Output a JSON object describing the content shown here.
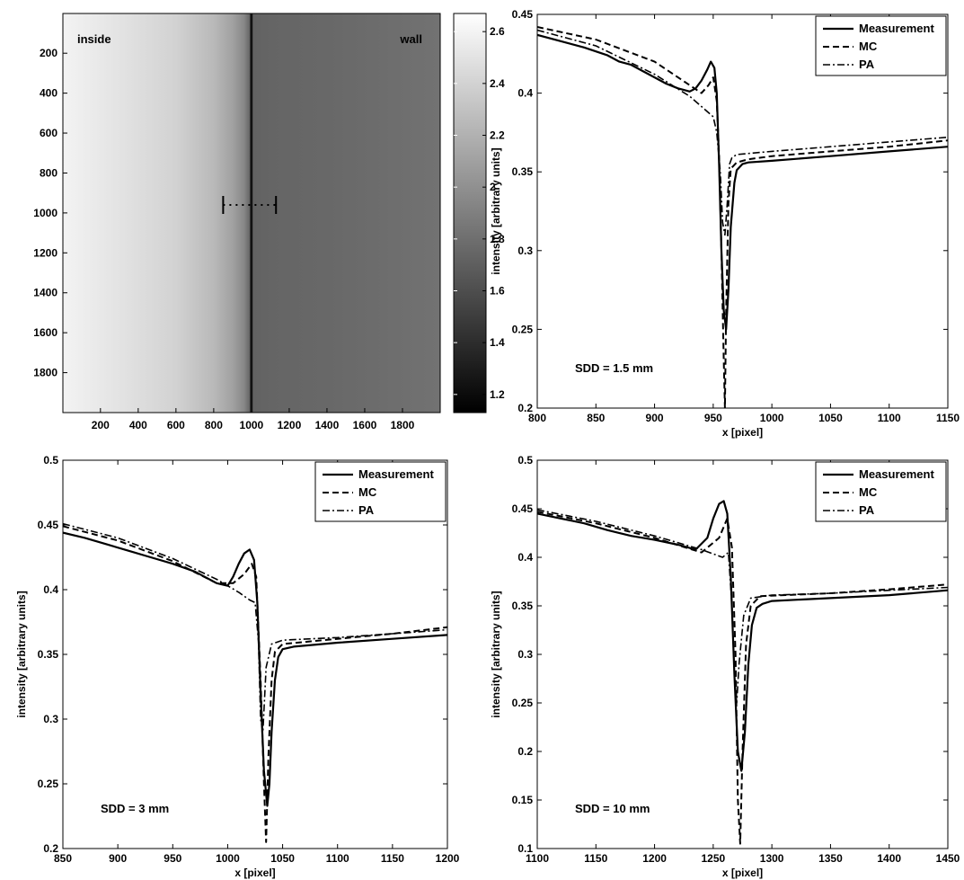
{
  "chart_data": [
    {
      "type": "heatmap",
      "annotations": [
        "inside",
        "wall"
      ],
      "x_ticks": [
        "200",
        "400",
        "600",
        "800",
        "1000",
        "1200",
        "1400",
        "1600",
        "1800"
      ],
      "y_ticks": [
        "200",
        "400",
        "600",
        "800",
        "1000",
        "1200",
        "1400",
        "1600",
        "1800"
      ],
      "xlim": [
        1,
        2000
      ],
      "ylim": [
        1,
        2000
      ],
      "colorbar": {
        "range": [
          1.13,
          2.67
        ],
        "ticks": [
          "1.2",
          "1.4",
          "1.6",
          "1.8",
          "2",
          "2.2",
          "2.4",
          "2.6"
        ]
      },
      "profile_line": {
        "x": [
          850,
          1130
        ],
        "y": 960
      },
      "edge_x": 1000,
      "values_description_free": false,
      "intensity_profile_x": [
        0,
        300,
        600,
        800,
        900,
        960,
        990,
        998,
        1003,
        1010,
        1100,
        1400,
        1700,
        2000
      ],
      "intensity_profile_v": [
        2.6,
        2.5,
        2.4,
        2.25,
        2.1,
        1.95,
        1.75,
        1.2,
        1.6,
        1.72,
        1.74,
        1.76,
        1.79,
        1.82
      ]
    },
    {
      "type": "line",
      "xlabel": "x [pixel]",
      "ylabel": "intensity [arbitrary units]",
      "xlim": [
        800,
        1150
      ],
      "ylim": [
        0.2,
        0.45
      ],
      "x_ticks": [
        "800",
        "850",
        "900",
        "950",
        "1000",
        "1050",
        "1100",
        "1150"
      ],
      "y_ticks": [
        "0.2",
        "0.25",
        "0.3",
        "0.35",
        "0.4",
        "0.45"
      ],
      "annotation": "SDD = 1.5 mm",
      "legend": [
        "Measurement",
        "MC",
        "PA"
      ],
      "legend_position": "top-right",
      "series": [
        {
          "name": "Measurement",
          "style": "solid",
          "x": [
            800,
            820,
            840,
            860,
            870,
            880,
            890,
            900,
            910,
            920,
            930,
            935,
            940,
            945,
            948,
            951,
            953,
            955,
            957,
            959,
            961,
            963,
            965,
            968,
            970,
            975,
            980,
            1000,
            1050,
            1100,
            1150
          ],
          "y": [
            0.437,
            0.433,
            0.429,
            0.424,
            0.42,
            0.418,
            0.414,
            0.41,
            0.406,
            0.403,
            0.401,
            0.403,
            0.408,
            0.415,
            0.42,
            0.416,
            0.4,
            0.355,
            0.3,
            0.262,
            0.25,
            0.275,
            0.315,
            0.343,
            0.351,
            0.355,
            0.356,
            0.357,
            0.36,
            0.363,
            0.366
          ]
        },
        {
          "name": "MC",
          "style": "dashed",
          "x": [
            800,
            850,
            900,
            930,
            940,
            946,
            950,
            953,
            955,
            957,
            959,
            960,
            961,
            963,
            965,
            970,
            980,
            1000,
            1050,
            1100,
            1150
          ],
          "y": [
            0.442,
            0.434,
            0.42,
            0.405,
            0.4,
            0.405,
            0.41,
            0.395,
            0.36,
            0.3,
            0.23,
            0.2,
            0.26,
            0.33,
            0.352,
            0.356,
            0.358,
            0.36,
            0.363,
            0.366,
            0.37
          ]
        },
        {
          "name": "PA",
          "style": "dashdot",
          "x": [
            800,
            850,
            900,
            930,
            950,
            953,
            956,
            958,
            960,
            962,
            964,
            966,
            970,
            1000,
            1050,
            1100,
            1150
          ],
          "y": [
            0.44,
            0.43,
            0.412,
            0.398,
            0.385,
            0.375,
            0.35,
            0.318,
            0.31,
            0.33,
            0.355,
            0.359,
            0.361,
            0.363,
            0.366,
            0.369,
            0.372
          ]
        }
      ]
    },
    {
      "type": "line",
      "xlabel": "x [pixel]",
      "ylabel": "intensity [arbitrary units]",
      "xlim": [
        850,
        1200
      ],
      "ylim": [
        0.2,
        0.5
      ],
      "x_ticks": [
        "850",
        "900",
        "950",
        "1000",
        "1050",
        "1100",
        "1150",
        "1200"
      ],
      "y_ticks": [
        "0.2",
        "0.25",
        "0.3",
        "0.35",
        "0.4",
        "0.45",
        "0.5"
      ],
      "annotation": "SDD = 3 mm",
      "legend": [
        "Measurement",
        "MC",
        "PA"
      ],
      "legend_position": "top-right",
      "series": [
        {
          "name": "Measurement",
          "style": "solid",
          "x": [
            850,
            870,
            890,
            910,
            930,
            950,
            970,
            990,
            1000,
            1005,
            1010,
            1015,
            1020,
            1024,
            1027,
            1030,
            1033,
            1036,
            1038,
            1040,
            1043,
            1046,
            1050,
            1060,
            1100,
            1150,
            1200
          ],
          "y": [
            0.444,
            0.44,
            0.435,
            0.43,
            0.425,
            0.42,
            0.414,
            0.405,
            0.403,
            0.41,
            0.42,
            0.428,
            0.431,
            0.423,
            0.39,
            0.32,
            0.26,
            0.233,
            0.25,
            0.29,
            0.33,
            0.348,
            0.354,
            0.356,
            0.359,
            0.362,
            0.365
          ]
        },
        {
          "name": "MC",
          "style": "dashed",
          "x": [
            850,
            900,
            950,
            990,
            1005,
            1015,
            1022,
            1026,
            1030,
            1033,
            1035,
            1037,
            1040,
            1043,
            1050,
            1100,
            1150,
            1200
          ],
          "y": [
            0.449,
            0.438,
            0.422,
            0.405,
            0.405,
            0.412,
            0.42,
            0.41,
            0.33,
            0.25,
            0.205,
            0.27,
            0.33,
            0.352,
            0.358,
            0.362,
            0.366,
            0.371
          ]
        },
        {
          "name": "PA",
          "style": "dashdot",
          "x": [
            850,
            900,
            950,
            990,
            1010,
            1020,
            1025,
            1028,
            1030,
            1032,
            1035,
            1040,
            1050,
            1100,
            1150,
            1200
          ],
          "y": [
            0.451,
            0.44,
            0.424,
            0.408,
            0.398,
            0.392,
            0.39,
            0.36,
            0.3,
            0.29,
            0.34,
            0.358,
            0.361,
            0.363,
            0.366,
            0.369
          ]
        }
      ]
    },
    {
      "type": "line",
      "xlabel": "x [pixel]",
      "ylabel": "intensity [arbitrary units]",
      "xlim": [
        1100,
        1450
      ],
      "ylim": [
        0.1,
        0.5
      ],
      "x_ticks": [
        "1100",
        "1150",
        "1200",
        "1250",
        "1300",
        "1350",
        "1400",
        "1450"
      ],
      "y_ticks": [
        "0.1",
        "0.15",
        "0.2",
        "0.25",
        "0.3",
        "0.35",
        "0.4",
        "0.45",
        "0.5"
      ],
      "annotation": "SDD = 10 mm",
      "legend": [
        "Measurement",
        "MC",
        "PA"
      ],
      "legend_position": "top-right",
      "series": [
        {
          "name": "Measurement",
          "style": "solid",
          "x": [
            1100,
            1120,
            1140,
            1160,
            1180,
            1200,
            1220,
            1235,
            1245,
            1250,
            1255,
            1259,
            1262,
            1265,
            1268,
            1271,
            1274,
            1277,
            1280,
            1283,
            1287,
            1292,
            1300,
            1350,
            1400,
            1450
          ],
          "y": [
            0.445,
            0.44,
            0.435,
            0.428,
            0.422,
            0.418,
            0.413,
            0.408,
            0.42,
            0.44,
            0.455,
            0.458,
            0.445,
            0.38,
            0.28,
            0.2,
            0.18,
            0.22,
            0.29,
            0.33,
            0.348,
            0.352,
            0.355,
            0.358,
            0.361,
            0.366
          ]
        },
        {
          "name": "MC",
          "style": "dashed",
          "x": [
            1100,
            1150,
            1200,
            1240,
            1255,
            1262,
            1266,
            1269,
            1271,
            1273,
            1275,
            1278,
            1282,
            1290,
            1350,
            1400,
            1450
          ],
          "y": [
            0.447,
            0.435,
            0.42,
            0.405,
            0.42,
            0.44,
            0.41,
            0.3,
            0.15,
            0.105,
            0.2,
            0.31,
            0.35,
            0.36,
            0.363,
            0.367,
            0.372
          ]
        },
        {
          "name": "PA",
          "style": "dashdot",
          "x": [
            1100,
            1150,
            1200,
            1240,
            1258,
            1263,
            1266,
            1268,
            1270,
            1272,
            1276,
            1282,
            1300,
            1350,
            1400,
            1450
          ],
          "y": [
            0.449,
            0.437,
            0.422,
            0.408,
            0.4,
            0.405,
            0.35,
            0.28,
            0.25,
            0.29,
            0.34,
            0.358,
            0.361,
            0.363,
            0.366,
            0.369
          ]
        }
      ]
    }
  ]
}
